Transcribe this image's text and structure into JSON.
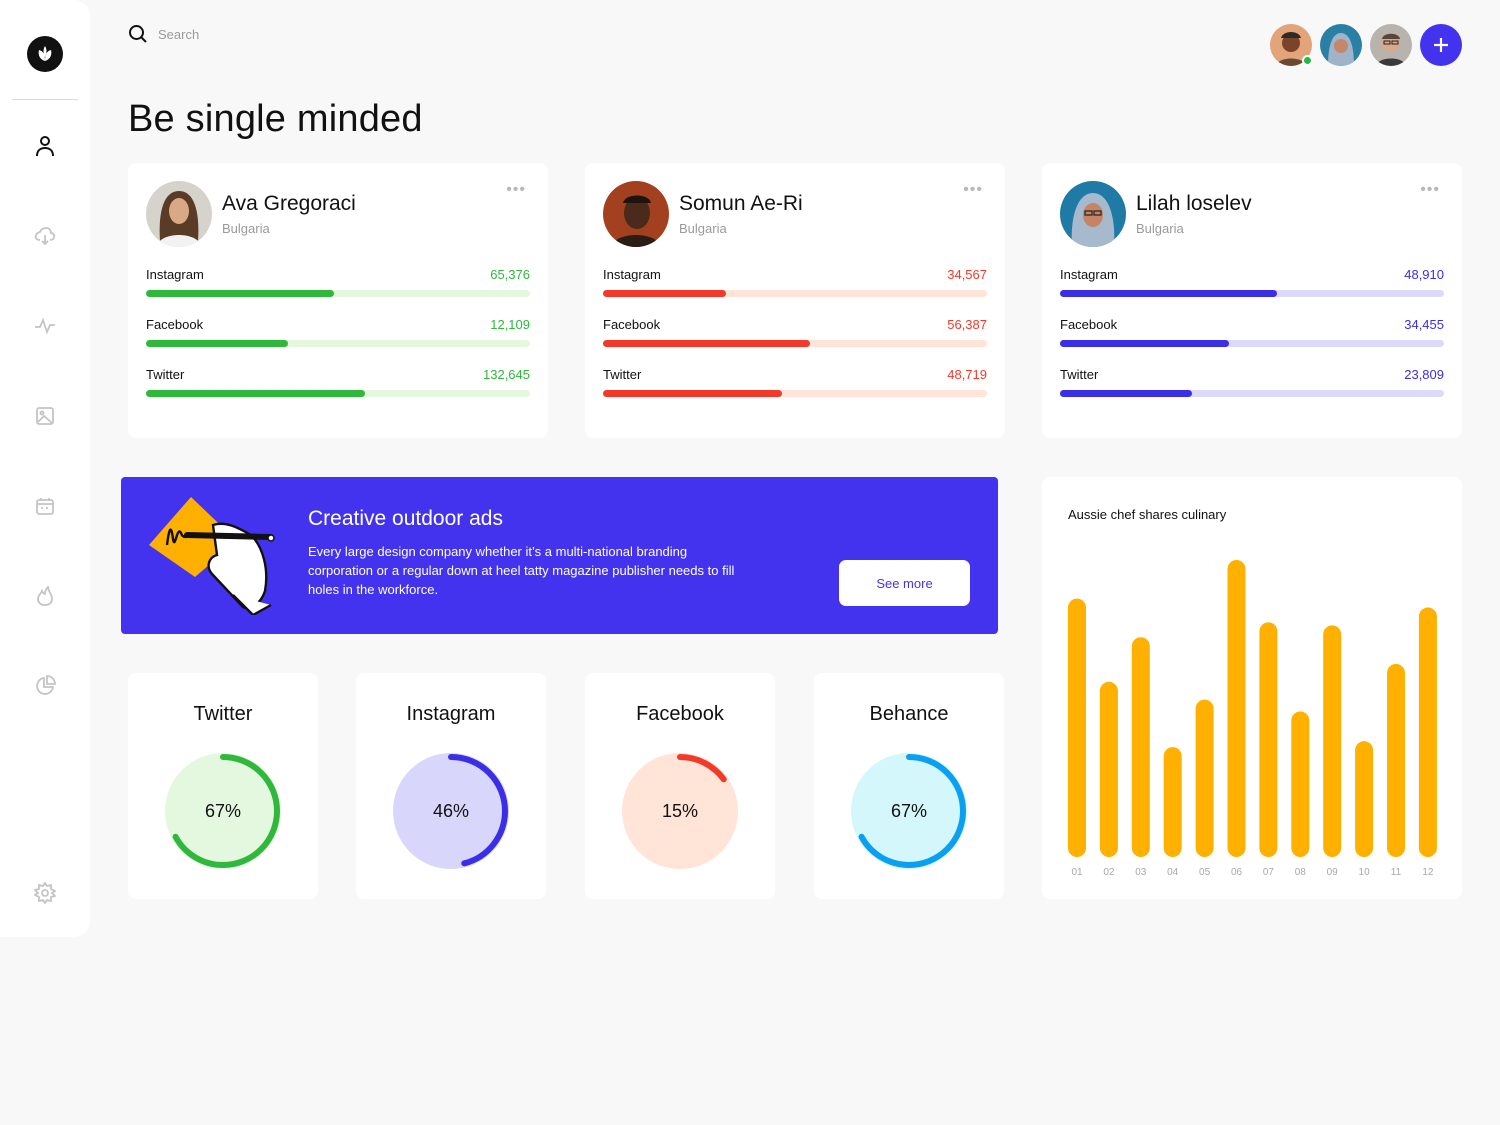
{
  "search": {
    "placeholder": "Search"
  },
  "page": {
    "title": "Be single minded"
  },
  "colors": {
    "accent": "#4433ee",
    "green": "#2fb83b",
    "red": "#f33a2a",
    "blue": "#3a2fe6",
    "bar": "#ffb000"
  },
  "sidebar": {
    "items": [
      "user-icon",
      "cloud-download-icon",
      "activity-icon",
      "image-icon",
      "calendar-icon",
      "flame-icon",
      "pie-chart-icon",
      "settings-icon"
    ]
  },
  "profiles": [
    {
      "name": "Ava Gregoraci",
      "location": "Bulgaria",
      "stats": [
        {
          "label": "Instagram",
          "value": "65,376",
          "fraction": 0.49
        },
        {
          "label": "Facebook",
          "value": "12,109",
          "fraction": 0.37
        },
        {
          "label": "Twitter",
          "value": "132,645",
          "fraction": 0.57
        }
      ]
    },
    {
      "name": "Somun Ae-Ri",
      "location": "Bulgaria",
      "stats": [
        {
          "label": "Instagram",
          "value": "34,567",
          "fraction": 0.32
        },
        {
          "label": "Facebook",
          "value": "56,387",
          "fraction": 0.54
        },
        {
          "label": "Twitter",
          "value": "48,719",
          "fraction": 0.465
        }
      ]
    },
    {
      "name": "Lilah loselev",
      "location": "Bulgaria",
      "stats": [
        {
          "label": "Instagram",
          "value": "48,910",
          "fraction": 0.565
        },
        {
          "label": "Facebook",
          "value": "34,455",
          "fraction": 0.44
        },
        {
          "label": "Twitter",
          "value": "23,809",
          "fraction": 0.345
        }
      ]
    }
  ],
  "banner": {
    "title": "Creative outdoor ads",
    "text": "Every large design company whether it’s a multi-national branding corporation or a regular down at heel tatty magazine publisher needs to fill holes in the workforce.",
    "button": "See more"
  },
  "rings": [
    {
      "title": "Twitter",
      "percent": 67,
      "label": "67%"
    },
    {
      "title": "Instagram",
      "percent": 46,
      "label": "46%"
    },
    {
      "title": "Facebook",
      "percent": 15,
      "label": "15%"
    },
    {
      "title": "Behance",
      "percent": 67,
      "label": "67%"
    }
  ],
  "chart_data": {
    "type": "bar",
    "title": "Aussie chef shares culinary",
    "categories": [
      "01",
      "02",
      "03",
      "04",
      "05",
      "06",
      "07",
      "08",
      "09",
      "10",
      "11",
      "12"
    ],
    "values": [
      87,
      59,
      74,
      37,
      53,
      100,
      79,
      49,
      78,
      39,
      65,
      84
    ],
    "ylim": [
      0,
      100
    ],
    "grid": false,
    "legend": "none"
  }
}
